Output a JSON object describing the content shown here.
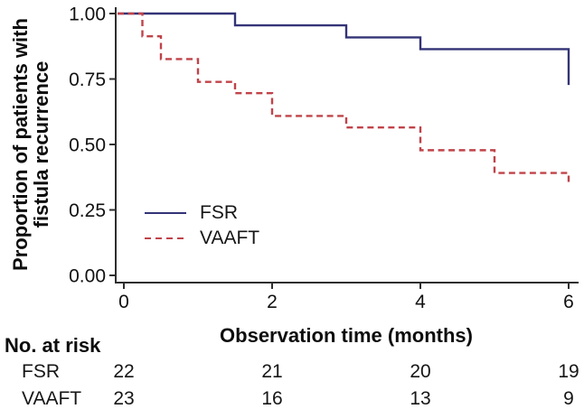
{
  "colors": {
    "fsr": "#333377",
    "vaaft": "#c04349",
    "axis": "#2e2e2e",
    "text": "#111111"
  },
  "chart_data": {
    "type": "line",
    "subtype": "kaplan-meier-step",
    "title": "",
    "xlabel": "Observation time (months)",
    "ylabel_lines": [
      "Proportion of patients with",
      "fistula recurrence"
    ],
    "xlim": [
      0,
      6
    ],
    "ylim": [
      0.0,
      1.0
    ],
    "xticks": [
      0,
      2,
      4,
      6
    ],
    "yticks": [
      0.0,
      0.25,
      0.5,
      0.75,
      1.0
    ],
    "ytick_labels": [
      "0.00",
      "0.25",
      "0.50",
      "0.75",
      "1.00"
    ],
    "grid": false,
    "legend_position": "inside-lower-left",
    "series": [
      {
        "name": "FSR",
        "line_style": "solid",
        "color": "#333377",
        "steps": [
          {
            "t": 0,
            "p": 1.0
          },
          {
            "t": 1.5,
            "p": 0.955
          },
          {
            "t": 3,
            "p": 0.909
          },
          {
            "t": 4,
            "p": 0.864
          },
          {
            "t": 6,
            "p": 0.727
          }
        ]
      },
      {
        "name": "VAAFT",
        "line_style": "dashed",
        "color": "#c04349",
        "steps": [
          {
            "t": 0,
            "p": 1.0
          },
          {
            "t": 0.25,
            "p": 0.913
          },
          {
            "t": 0.5,
            "p": 0.826
          },
          {
            "t": 1,
            "p": 0.739
          },
          {
            "t": 1.5,
            "p": 0.696
          },
          {
            "t": 2,
            "p": 0.609
          },
          {
            "t": 3,
            "p": 0.565
          },
          {
            "t": 4,
            "p": 0.478
          },
          {
            "t": 5,
            "p": 0.391
          },
          {
            "t": 6,
            "p": 0.348
          }
        ]
      }
    ],
    "risk_table": {
      "title": "No. at risk",
      "time_points": [
        0,
        2,
        4,
        6
      ],
      "rows": [
        {
          "label": "FSR",
          "values": [
            "22",
            "21",
            "20",
            "19"
          ]
        },
        {
          "label": "VAAFT",
          "values": [
            "23",
            "16",
            "13",
            "9"
          ]
        }
      ]
    }
  }
}
